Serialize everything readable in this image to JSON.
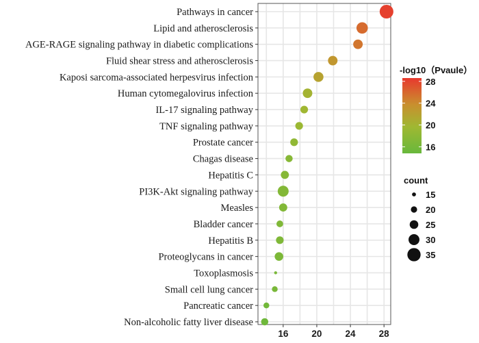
{
  "chart_data": {
    "type": "scatter",
    "title": "",
    "xlabel": "",
    "ylabel": "",
    "xlim": [
      13,
      28.8
    ],
    "x_ticks": [
      16,
      20,
      24,
      28
    ],
    "grid": true,
    "categories": [
      "Pathways in cancer",
      "Lipid and atherosclerosis",
      "AGE-RAGE signaling pathway in diabetic complications",
      "Fluid shear stress and atherosclerosis",
      "Kaposi sarcoma-associated herpesvirus infection",
      "Human cytomegalovirus infection",
      "IL-17 signaling pathway",
      "TNF signaling pathway",
      "Prostate cancer",
      "Chagas disease",
      "Hepatitis C",
      "PI3K-Akt signaling pathway",
      "Measles",
      "Bladder cancer",
      "Hepatitis B",
      "Proteoglycans in cancer",
      "Toxoplasmosis",
      "Small cell lung cancer",
      "Pancreatic cancer",
      "Non-alcoholic fatty liver disease"
    ],
    "x": [
      28.3,
      25.4,
      24.9,
      21.9,
      20.2,
      18.9,
      18.5,
      17.9,
      17.3,
      16.7,
      16.2,
      16.0,
      16.0,
      15.6,
      15.6,
      15.5,
      15.1,
      15.0,
      14.0,
      13.8
    ],
    "count": [
      36,
      31,
      27,
      27,
      28,
      27,
      23,
      23,
      23,
      22,
      24,
      30,
      24,
      21,
      23,
      25,
      13,
      19,
      19,
      22
    ],
    "color_value": [
      28.2,
      25.8,
      25.2,
      23.0,
      21.9,
      20.1,
      19.7,
      19.3,
      18.4,
      17.5,
      17.4,
      17.2,
      17.1,
      16.9,
      16.8,
      16.6,
      16.4,
      16.3,
      15.7,
      15.4
    ],
    "color_legend": {
      "title": "-log10（Pvaule）",
      "ticks": [
        28,
        24,
        20,
        16
      ],
      "range": [
        14.8,
        28.6
      ],
      "colors": [
        "#e8392e",
        "#c98f2e",
        "#9fb832",
        "#68b83c"
      ]
    },
    "size_legend": {
      "title": "count",
      "values": [
        15,
        20,
        25,
        30,
        35
      ]
    }
  }
}
